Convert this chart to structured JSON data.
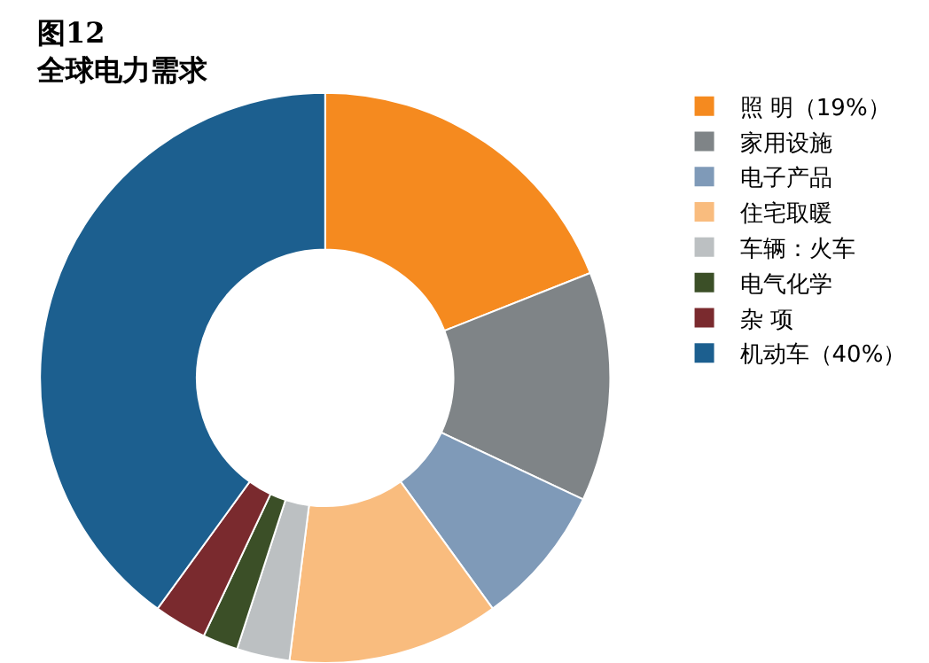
{
  "chart_data": {
    "type": "donut",
    "title": "图12",
    "subtitle": "全球电力需求",
    "categories": [
      "照 明（19%）",
      "家用设施",
      "电子产品",
      "住宅取暖",
      "车辆：火车",
      "电气化学",
      "杂 项",
      "机动车（40%）"
    ],
    "values": [
      19,
      13,
      8,
      12,
      3,
      2,
      3,
      40
    ],
    "colors": [
      "#f58a1f",
      "#7f8487",
      "#7f9ab8",
      "#f9bc7e",
      "#bcc0c2",
      "#3b4f27",
      "#7a2a2e",
      "#1c5f8f"
    ],
    "legend": "right"
  }
}
